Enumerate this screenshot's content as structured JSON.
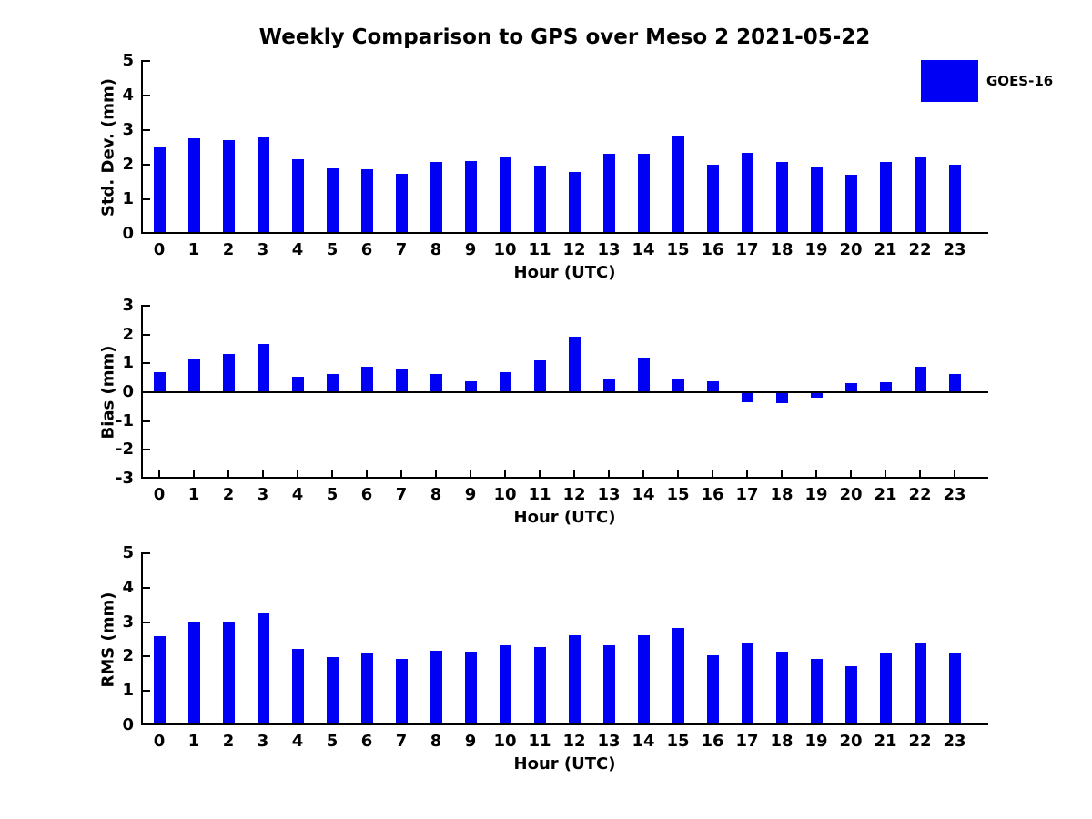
{
  "title": "Weekly Comparison to GPS over Meso 2 2021-05-22",
  "legend": {
    "label": "GOES-16",
    "color": "#0000f5",
    "position": "top-right"
  },
  "colors": {
    "bar": "#0000f5",
    "axis": "#000000",
    "text": "#000000",
    "background": "#ffffff"
  },
  "chart_data": [
    {
      "type": "bar",
      "title": "",
      "ylabel": "Std. Dev. (mm)",
      "xlabel": "Hour (UTC)",
      "ylim": [
        0,
        5
      ],
      "yticks": [
        0,
        1,
        2,
        3,
        4,
        5
      ],
      "grid": false,
      "categories": [
        "0",
        "1",
        "2",
        "3",
        "4",
        "5",
        "6",
        "7",
        "8",
        "9",
        "10",
        "11",
        "12",
        "13",
        "14",
        "15",
        "16",
        "17",
        "18",
        "19",
        "20",
        "21",
        "22",
        "23"
      ],
      "series": [
        {
          "name": "GOES-16",
          "values": [
            2.49,
            2.77,
            2.71,
            2.79,
            2.17,
            1.89,
            1.88,
            1.75,
            2.07,
            2.1,
            2.2,
            1.98,
            1.78,
            2.31,
            2.32,
            2.83,
            2.01,
            2.35,
            2.09,
            1.94,
            1.71,
            2.07,
            2.25,
            1.99
          ]
        }
      ]
    },
    {
      "type": "bar",
      "title": "",
      "ylabel": "Bias (mm)",
      "xlabel": "Hour (UTC)",
      "ylim": [
        -3,
        3
      ],
      "yticks": [
        3,
        2,
        1,
        0,
        -1,
        -2,
        -3
      ],
      "grid": false,
      "categories": [
        "0",
        "1",
        "2",
        "3",
        "4",
        "5",
        "6",
        "7",
        "8",
        "9",
        "10",
        "11",
        "12",
        "13",
        "14",
        "15",
        "16",
        "17",
        "18",
        "19",
        "20",
        "21",
        "22",
        "23"
      ],
      "series": [
        {
          "name": "GOES-16",
          "values": [
            0.7,
            1.18,
            1.32,
            1.66,
            0.55,
            0.64,
            0.89,
            0.83,
            0.64,
            0.38,
            0.7,
            1.1,
            1.92,
            0.45,
            1.21,
            0.43,
            0.38,
            -0.35,
            -0.38,
            -0.18,
            0.32,
            0.34,
            0.89,
            0.63
          ]
        }
      ]
    },
    {
      "type": "bar",
      "title": "",
      "ylabel": "RMS (mm)",
      "xlabel": "Hour (UTC)",
      "ylim": [
        0,
        5
      ],
      "yticks": [
        0,
        1,
        2,
        3,
        4,
        5
      ],
      "grid": false,
      "categories": [
        "0",
        "1",
        "2",
        "3",
        "4",
        "5",
        "6",
        "7",
        "8",
        "9",
        "10",
        "11",
        "12",
        "13",
        "14",
        "15",
        "16",
        "17",
        "18",
        "19",
        "20",
        "21",
        "22",
        "23"
      ],
      "series": [
        {
          "name": "GOES-16",
          "values": [
            2.58,
            3.01,
            3.01,
            3.26,
            2.23,
            1.98,
            2.09,
            1.94,
            2.17,
            2.14,
            2.32,
            2.27,
            2.63,
            2.32,
            2.63,
            2.84,
            2.03,
            2.38,
            2.13,
            1.94,
            1.71,
            2.1,
            2.39,
            2.08
          ]
        }
      ]
    }
  ]
}
